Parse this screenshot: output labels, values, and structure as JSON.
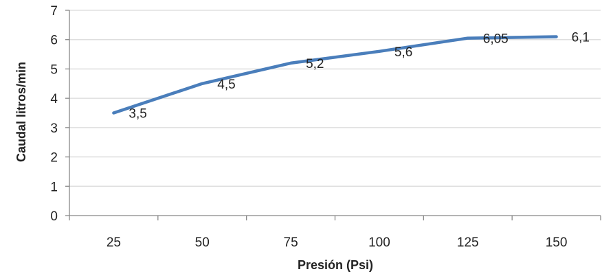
{
  "chart_data": {
    "type": "line",
    "categories": [
      "25",
      "50",
      "75",
      "100",
      "125",
      "150"
    ],
    "series": [
      {
        "values": [
          3.5,
          4.5,
          5.2,
          5.6,
          6.05,
          6.1
        ],
        "data_labels": [
          "3,5",
          "4,5",
          "5,2",
          "5,6",
          "6,05",
          "6,1"
        ],
        "color": "#4a7ebb"
      }
    ],
    "title": "",
    "xlabel": "Presión (Psi)",
    "ylabel": "Caudal litros/min",
    "ylim": [
      0,
      7
    ],
    "yticks": [
      "0",
      "1",
      "2",
      "3",
      "4",
      "5",
      "6",
      "7"
    ],
    "grid": {
      "horizontal": true,
      "vertical": false
    },
    "legend": "none",
    "gridline_color": "#d9d9d9",
    "axis_color": "#888888"
  }
}
